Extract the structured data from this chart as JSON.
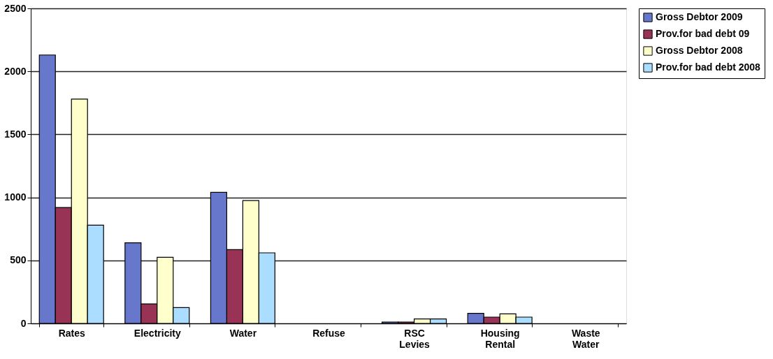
{
  "chart_data": {
    "type": "bar",
    "categories": [
      "Rates",
      "Electricity",
      "Water",
      "Refuse",
      "RSC Levies",
      "Housing Rental",
      "Waste Water"
    ],
    "series": [
      {
        "name": "Gross Debtor 2009",
        "color": "#6677cc",
        "values": [
          2130,
          640,
          1040,
          null,
          10,
          80,
          null
        ]
      },
      {
        "name": "Prov.for bad debt 09",
        "color": "#993355",
        "values": [
          920,
          155,
          585,
          null,
          10,
          50,
          null
        ]
      },
      {
        "name": "Gross Debtor 2008",
        "color": "#ffffcc",
        "values": [
          1780,
          525,
          975,
          null,
          35,
          75,
          null
        ]
      },
      {
        "name": "Prov.for bad debt 2008",
        "color": "#aaddff",
        "values": [
          780,
          125,
          560,
          null,
          35,
          50,
          null
        ]
      }
    ],
    "ylim": [
      0,
      2500
    ],
    "yticks": [
      0,
      500,
      1000,
      1500,
      2000,
      2500
    ],
    "grid": "y",
    "legend": "right"
  }
}
